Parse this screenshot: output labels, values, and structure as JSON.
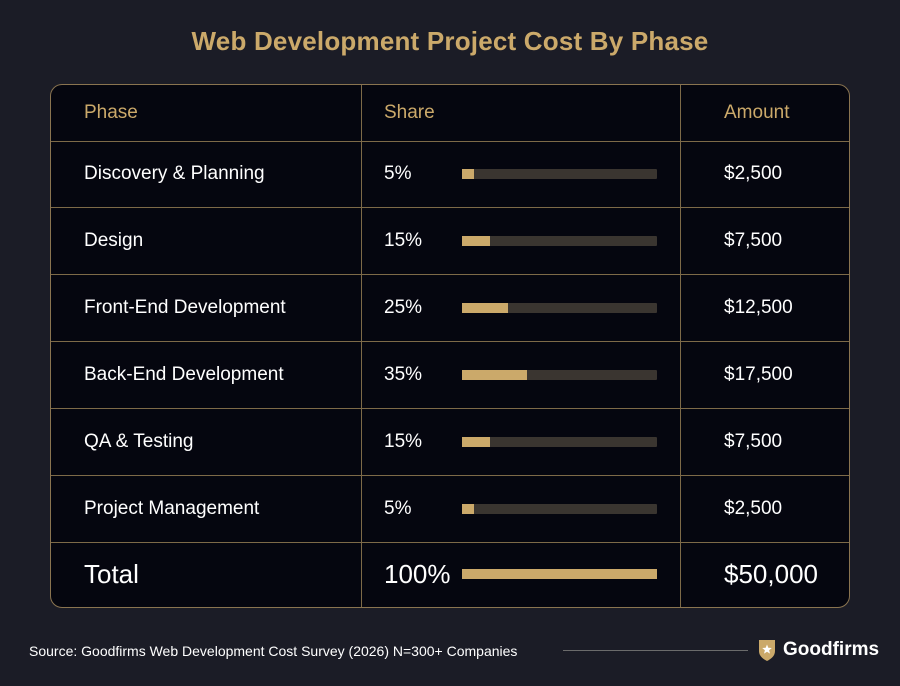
{
  "title": "Web Development Project Cost By Phase",
  "headers": {
    "phase": "Phase",
    "share": "Share",
    "amount": "Amount"
  },
  "chart_data": {
    "type": "table",
    "title": "Web Development Project Cost By Phase",
    "columns": [
      "Phase",
      "Share",
      "Amount"
    ],
    "rows": [
      {
        "phase": "Discovery & Planning",
        "share_label": "5%",
        "share": 5,
        "amount": "$2,500"
      },
      {
        "phase": "Design",
        "share_label": "15%",
        "share": 15,
        "amount": "$7,500"
      },
      {
        "phase": "Front-End Development",
        "share_label": "25%",
        "share": 25,
        "amount": "$12,500"
      },
      {
        "phase": "Back-End Development",
        "share_label": "35%",
        "share": 35,
        "amount": "$17,500"
      },
      {
        "phase": "QA & Testing",
        "share_label": "15%",
        "share": 15,
        "amount": "$7,500"
      },
      {
        "phase": "Project Management",
        "share_label": "5%",
        "share": 5,
        "amount": "$2,500"
      }
    ],
    "total": {
      "phase": "Total",
      "share_label": "100%",
      "share": 100,
      "amount": "$50,000"
    }
  },
  "colors": {
    "accent": "#cba96a",
    "track": "#3a3530",
    "background": "#1b1c26",
    "panel": "#05060f"
  },
  "footer": {
    "source": "Source: Goodfirms Web Development Cost Survey (2026) N=300+ Companies",
    "brand": "Goodfirms",
    "brand_icon": "goodfirms-shield-star-icon"
  }
}
